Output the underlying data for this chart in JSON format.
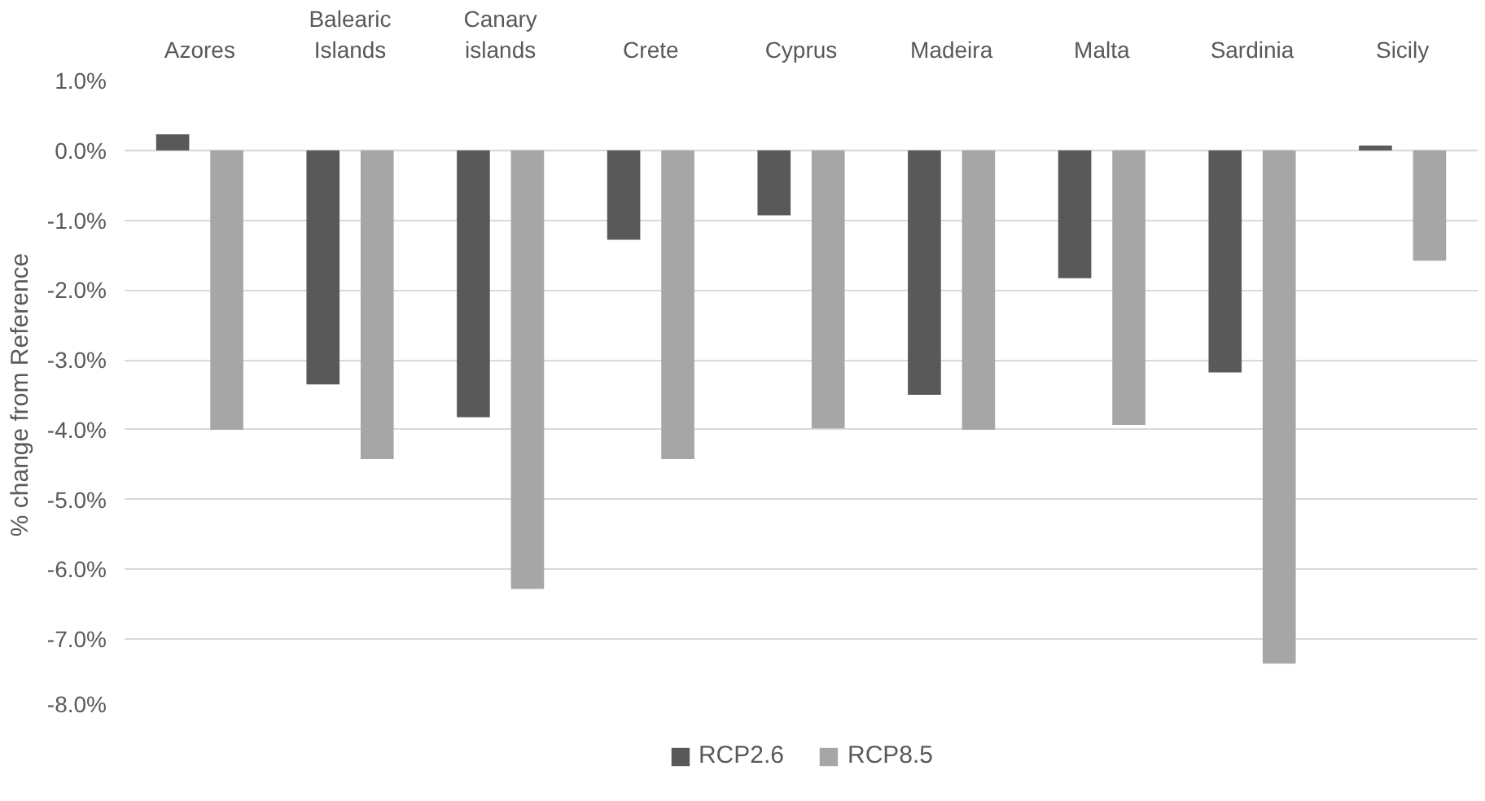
{
  "chart_data": {
    "type": "bar",
    "ylabel": "% change from Reference",
    "categories": [
      "Azores",
      "Balearic Islands",
      "Canary islands",
      "Crete",
      "Cyprus",
      "Madeira",
      "Malta",
      "Sardinia",
      "Sicily"
    ],
    "series": [
      {
        "name": "RCP2.6",
        "color": "#595959",
        "values": [
          0.23,
          -3.35,
          -3.82,
          -1.28,
          -0.93,
          -3.5,
          -1.83,
          -3.18,
          0.07
        ]
      },
      {
        "name": "RCP8.5",
        "color": "#a6a6a6",
        "values": [
          -4.0,
          -4.42,
          -6.28,
          -4.42,
          -3.98,
          -4.0,
          -3.93,
          -7.35,
          -1.58
        ]
      }
    ],
    "ylim": [
      -8.0,
      1.0
    ],
    "yticks": [
      {
        "value": 1.0,
        "label": "1.0%"
      },
      {
        "value": 0.0,
        "label": "0.0%"
      },
      {
        "value": -1.0,
        "label": "-1.0%"
      },
      {
        "value": -2.0,
        "label": "-2.0%"
      },
      {
        "value": -3.0,
        "label": "-3.0%"
      },
      {
        "value": -4.0,
        "label": "-4.0%"
      },
      {
        "value": -5.0,
        "label": "-5.0%"
      },
      {
        "value": -6.0,
        "label": "-6.0%"
      },
      {
        "value": -7.0,
        "label": "-7.0%"
      },
      {
        "value": -8.0,
        "label": "-8.0%"
      }
    ],
    "grid": "y",
    "legend": "bottom"
  }
}
